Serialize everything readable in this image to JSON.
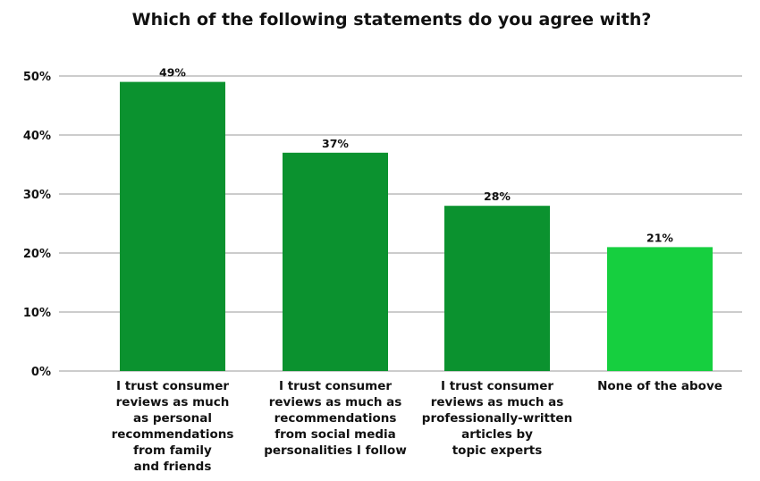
{
  "chart_data": {
    "type": "bar",
    "title": "Which of the following statements do you agree with?",
    "xlabel": "",
    "ylabel": "",
    "ylim": [
      0,
      50
    ],
    "yticks": [
      0,
      10,
      20,
      30,
      40,
      50
    ],
    "ytick_labels": [
      "0%",
      "10%",
      "20%",
      "30%",
      "40%",
      "50%"
    ],
    "grid": true,
    "categories": [
      [
        "I trust consumer",
        "reviews as much",
        "as personal",
        "recommendations",
        "from family",
        "and friends"
      ],
      [
        "I trust consumer",
        "reviews as much as",
        "recommendations",
        "from social media",
        "personalities I follow"
      ],
      [
        "I trust consumer",
        "reviews as much as",
        "professionally-written",
        "articles by",
        "topic experts"
      ],
      [
        "None of the above"
      ]
    ],
    "values": [
      49,
      37,
      28,
      21
    ],
    "data_labels": [
      "49%",
      "37%",
      "28%",
      "21%"
    ],
    "colors": [
      "#0b922f",
      "#0b922f",
      "#0b922f",
      "#16cf3f"
    ]
  }
}
